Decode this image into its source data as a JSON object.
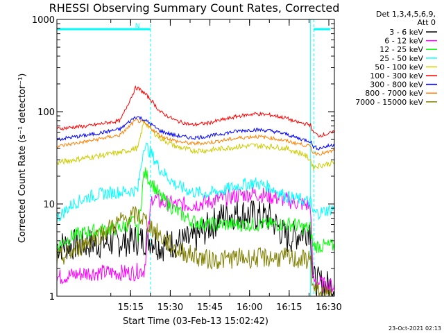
{
  "chart_data": {
    "type": "line",
    "title": "RHESSI Observing Summary Count Rates, Corrected",
    "xlabel": "Start Time (03-Feb-13 15:02:42)",
    "ylabel": "Corrected Count Rate (s⁻¹ detector⁻¹)",
    "yscale": "log",
    "ylim": [
      1,
      1000
    ],
    "y_ticks": [
      {
        "value": 1,
        "label": "1"
      },
      {
        "value": 10,
        "label": "10"
      },
      {
        "value": 100,
        "label": "100"
      },
      {
        "value": 1000,
        "label": "1000"
      }
    ],
    "xlim": [
      3.0,
      38.0
    ],
    "x_ticks": [
      {
        "value": 12.3,
        "label": "15:15"
      },
      {
        "value": 17.3,
        "label": "15:30"
      },
      {
        "value": 22.3,
        "label": "15:45"
      },
      {
        "value": 27.3,
        "label": "16:00"
      },
      {
        "value": 32.3,
        "label": "16:15"
      },
      {
        "value": 37.3,
        "label": "16:30"
      }
    ],
    "legend_header": [
      "Det 1,3,4,5,6,9,",
      "Att 0"
    ],
    "timestamp": "23-Oct-2021 02:13",
    "annotations": [
      {
        "label": "N",
        "start": 12.6,
        "end": 14.8,
        "color": "#00ffff"
      },
      {
        "label": "",
        "start": 3.0,
        "end": 0,
        "color": "#00ffff"
      },
      {
        "label": "",
        "start": 35.4,
        "end": 37.5,
        "color": "#00ffff"
      }
    ],
    "markers": [
      {
        "x": 3.0,
        "style": "solid",
        "color": "#00ffff"
      },
      {
        "x": 14.8,
        "style": "dashed",
        "color": "#00ffff"
      },
      {
        "x": 35.0,
        "style": "solid",
        "color": "#00ffff"
      },
      {
        "x": 35.4,
        "style": "dashed",
        "color": "#00ffff"
      },
      {
        "x": 38.0,
        "style": "dashed",
        "color": "#00ffff"
      }
    ],
    "x": [
      3,
      5,
      7,
      9,
      11,
      12.9,
      13.2,
      14,
      15,
      16,
      18,
      20,
      22,
      24,
      26,
      28,
      30,
      32,
      33,
      34,
      35,
      35.3,
      36,
      37,
      38
    ],
    "series": [
      {
        "name": "3 - 6 keV",
        "color": "#000000",
        "values": [
          3.5,
          3.6,
          3.7,
          3.8,
          3.9,
          4.1,
          4.0,
          4.1,
          4.2,
          3.5,
          3.8,
          4.0,
          5.5,
          7.5,
          8.0,
          7.5,
          7.0,
          4.2,
          4.5,
          5.0,
          5.5,
          1.5,
          1.4,
          1.3,
          1.3
        ]
      },
      {
        "name": "6 - 12 keV",
        "color": "#ff00ff",
        "values": [
          1.6,
          1.7,
          1.8,
          1.8,
          1.8,
          1.8,
          1.9,
          1.9,
          12.0,
          10.5,
          9.8,
          9.8,
          10.5,
          11.5,
          12.5,
          13.0,
          12.0,
          11.0,
          10.5,
          10.0,
          9.5,
          1.5,
          1.4,
          1.3,
          1.3
        ]
      },
      {
        "name": "12 - 25 keV",
        "color": "#00ff00",
        "values": [
          3.5,
          4.5,
          5.0,
          5.2,
          5.5,
          6.5,
          4.5,
          22,
          17,
          12,
          8.5,
          6.5,
          6.0,
          6.0,
          6.0,
          6.0,
          6.0,
          6.0,
          6.0,
          5.5,
          5.5,
          3.5,
          3.5,
          3.5,
          3.5
        ]
      },
      {
        "name": "25 - 50 keV",
        "color": "#00ffff",
        "values": [
          7.0,
          10.0,
          12.0,
          13.0,
          13.5,
          14.0,
          14.0,
          45,
          34,
          24,
          16,
          13.5,
          13,
          14,
          16,
          17,
          15,
          12,
          11.5,
          11,
          10.5,
          8,
          8,
          8.5,
          9
        ]
      },
      {
        "name": "50 - 100 keV",
        "color": "#cccc00",
        "values": [
          28,
          30,
          32,
          34,
          36,
          40,
          40,
          80,
          62,
          52,
          42,
          38,
          38,
          40,
          42,
          43,
          42,
          40,
          37,
          35,
          30,
          25,
          26,
          27,
          28
        ]
      },
      {
        "name": "100 - 300 keV",
        "color": "#ff0000",
        "values": [
          65,
          68,
          70,
          75,
          80,
          180,
          180,
          160,
          130,
          100,
          80,
          72,
          75,
          82,
          90,
          95,
          92,
          85,
          78,
          75,
          72,
          60,
          55,
          57,
          60
        ]
      },
      {
        "name": "300 - 800 keV",
        "color": "#0000ff",
        "values": [
          50,
          53,
          56,
          60,
          65,
          88,
          88,
          82,
          72,
          62,
          55,
          52,
          54,
          58,
          62,
          64,
          62,
          57,
          53,
          50,
          48,
          42,
          40,
          42,
          44
        ]
      },
      {
        "name": "800 - 7000 keV",
        "color": "#ff8000",
        "values": [
          42,
          45,
          48,
          52,
          56,
          80,
          80,
          75,
          65,
          55,
          48,
          45,
          46,
          49,
          52,
          54,
          52,
          48,
          46,
          44,
          42,
          36,
          35,
          36,
          38
        ]
      },
      {
        "name": "7000 - 15000 keV",
        "color": "#808000",
        "values": [
          2.5,
          3.0,
          4.0,
          5.0,
          6.5,
          7.5,
          7.5,
          6.8,
          5.5,
          4.5,
          3.2,
          2.8,
          2.5,
          2.5,
          2.6,
          2.6,
          2.6,
          2.6,
          2.5,
          2.5,
          2.5,
          1.2,
          1.1,
          1.0,
          1.0
        ]
      }
    ]
  }
}
